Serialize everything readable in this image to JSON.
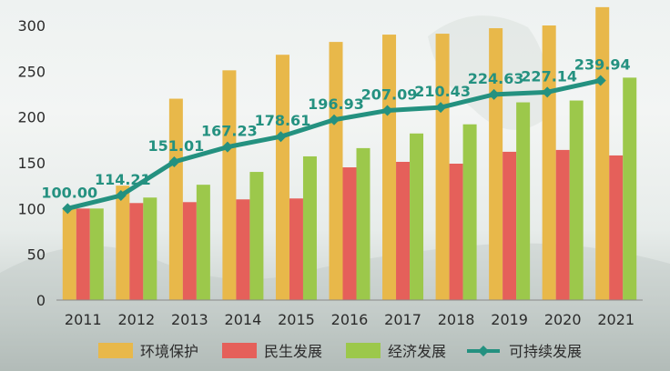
{
  "chart_data": {
    "type": "bar",
    "title": "",
    "xlabel": "",
    "ylabel": "",
    "ylim": [
      0,
      300
    ],
    "yticks": [
      0,
      50,
      100,
      150,
      200,
      250,
      300
    ],
    "grid": false,
    "legend_position": "bottom",
    "categories": [
      "2011",
      "2012",
      "2013",
      "2014",
      "2015",
      "2016",
      "2017",
      "2018",
      "2019",
      "2020",
      "2021"
    ],
    "series": [
      {
        "name": "环境保护",
        "type": "bar",
        "color": "#e8b84a",
        "values": [
          100,
          125,
          220,
          251,
          268,
          282,
          290,
          291,
          297,
          300,
          320
        ]
      },
      {
        "name": "民生发展",
        "type": "bar",
        "color": "#e5605a",
        "values": [
          100,
          106,
          107,
          110,
          111,
          145,
          151,
          149,
          162,
          164,
          158
        ]
      },
      {
        "name": "经济发展",
        "type": "bar",
        "color": "#9cc84b",
        "values": [
          100,
          112,
          126,
          140,
          157,
          166,
          182,
          192,
          216,
          218,
          243
        ]
      },
      {
        "name": "可持续发展",
        "type": "line",
        "color": "#249180",
        "values": [
          100.0,
          114.21,
          151.01,
          167.23,
          178.61,
          196.93,
          207.09,
          210.43,
          224.63,
          227.14,
          239.94
        ],
        "labels": [
          "100.00",
          "114.21",
          "151.01",
          "167.23",
          "178.61",
          "196.93",
          "207.09",
          "210.43",
          "224.63",
          "227.14",
          "239.94"
        ]
      }
    ]
  }
}
